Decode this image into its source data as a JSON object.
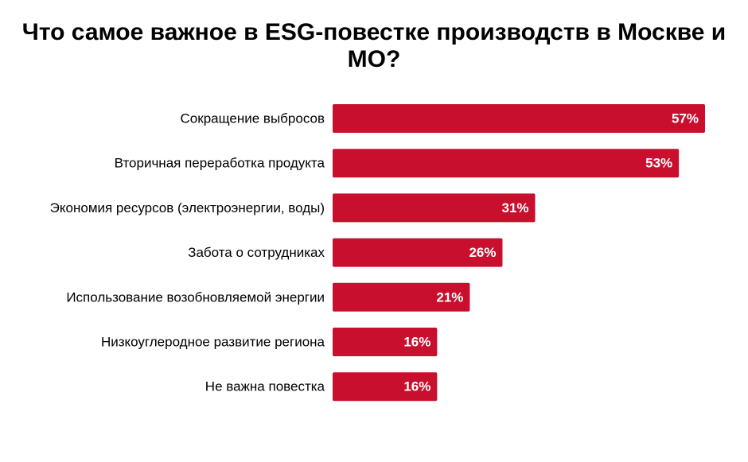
{
  "chart_data": {
    "type": "bar",
    "orientation": "horizontal",
    "title": "Что самое важное в ESG-повестке производств в Москве и МО?",
    "categories": [
      "Сокращение выбросов",
      "Вторичная переработка продукта",
      "Экономия ресурсов (электроэнергии, воды)",
      "Забота о сотрудниках",
      "Использование возобновляемой энергии",
      "Низкоуглеродное развитие региона",
      "Не важна повестка"
    ],
    "values": [
      57,
      53,
      31,
      26,
      21,
      16,
      16
    ],
    "value_labels": [
      "57%",
      "53%",
      "31%",
      "26%",
      "21%",
      "16%",
      "16%"
    ],
    "unit": "%",
    "xlim": [
      0,
      57
    ],
    "grid": false,
    "legend": "none",
    "colors": {
      "bar": "#c8102e",
      "value_text": "#ffffff",
      "category_text": "#000000",
      "title": "#000000"
    }
  }
}
